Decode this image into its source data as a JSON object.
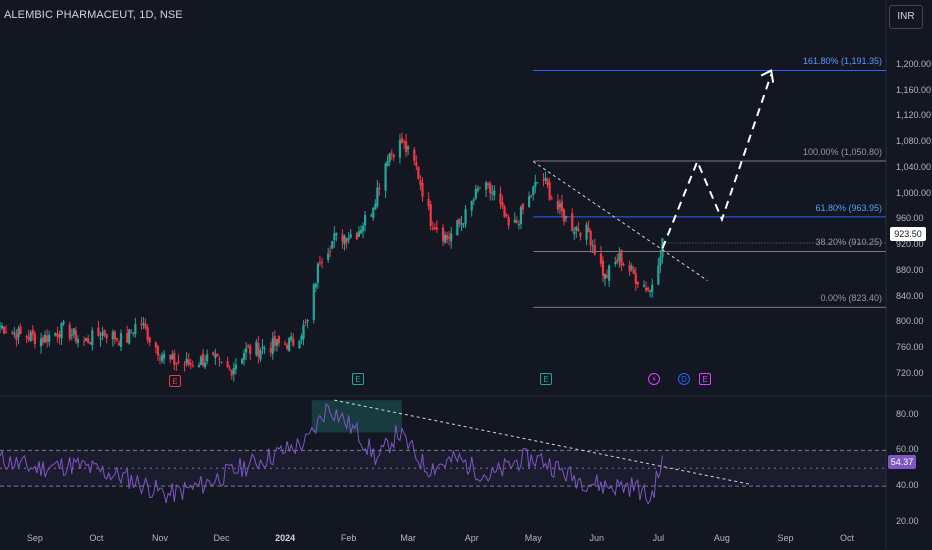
{
  "header": {
    "title": "ALEMBIC PHARMACEUT, 1D, NSE",
    "currency_button": "INR"
  },
  "price_axis": {
    "ticks": [
      "1,200.00",
      "1,160.00",
      "1,120.00",
      "1,080.00",
      "1,040.00",
      "1,000.00",
      "960.00",
      "920.00",
      "880.00",
      "840.00",
      "800.00",
      "760.00",
      "720.00"
    ]
  },
  "rsi_axis": {
    "ticks": [
      "80.00",
      "60.00",
      "40.00",
      "20.00"
    ]
  },
  "time_axis": {
    "ticks": [
      "Sep",
      "Oct",
      "Nov",
      "Dec",
      "2024",
      "Feb",
      "Mar",
      "Apr",
      "May",
      "Jun",
      "Jul",
      "Aug",
      "Sep",
      "Oct"
    ]
  },
  "last_price": "923.50",
  "rsi_value": "54.37",
  "fib_levels": [
    {
      "label": "161.80% (1,191.35)",
      "value": 1191.35
    },
    {
      "label": "100.00% (1,050.80)",
      "value": 1050.8
    },
    {
      "label": "61.80% (963.95)",
      "value": 963.95
    },
    {
      "label": "38.20% (910.25)",
      "value": 910.25
    },
    {
      "label": "0.00% (823.40)",
      "value": 823.4
    }
  ],
  "markers": [
    {
      "letter": "E",
      "type": "earnings-red"
    },
    {
      "letter": "E",
      "type": "earnings-green"
    },
    {
      "letter": "E",
      "type": "earnings-green"
    },
    {
      "letter": "⚡",
      "type": "split"
    },
    {
      "letter": "D",
      "type": "dividend"
    },
    {
      "letter": "E",
      "type": "earnings-purple"
    }
  ],
  "colors": {
    "up": "#26a69a",
    "down": "#f23645",
    "fib": "#787b86",
    "fib_ext": "#2962ff",
    "rsi": "#7e57c2",
    "bg": "#131722"
  },
  "chart_data": {
    "type": "candlestick",
    "title": "ALEMBIC PHARMACEUT, 1D, NSE",
    "x_range": [
      "2023-08-15",
      "2024-10-20"
    ],
    "y_range": [
      700,
      1220
    ],
    "close_anchors": [
      [
        "2023-08-15",
        795
      ],
      [
        "2023-08-25",
        780
      ],
      [
        "2023-09-05",
        775
      ],
      [
        "2023-09-15",
        790
      ],
      [
        "2023-09-25",
        770
      ],
      [
        "2023-10-05",
        785
      ],
      [
        "2023-10-15",
        770
      ],
      [
        "2023-10-22",
        805
      ],
      [
        "2023-10-28",
        770
      ],
      [
        "2023-11-05",
        740
      ],
      [
        "2023-11-15",
        735
      ],
      [
        "2023-11-25",
        745
      ],
      [
        "2023-12-05",
        725
      ],
      [
        "2023-12-12",
        755
      ],
      [
        "2023-12-20",
        760
      ],
      [
        "2023-12-28",
        765
      ],
      [
        "2024-01-05",
        770
      ],
      [
        "2024-01-12",
        800
      ],
      [
        "2024-01-18",
        900
      ],
      [
        "2024-01-25",
        930
      ],
      [
        "2024-02-05",
        940
      ],
      [
        "2024-02-12",
        975
      ],
      [
        "2024-02-20",
        1060
      ],
      [
        "2024-02-27",
        1080
      ],
      [
        "2024-03-05",
        1040
      ],
      [
        "2024-03-12",
        960
      ],
      [
        "2024-03-20",
        930
      ],
      [
        "2024-03-28",
        960
      ],
      [
        "2024-04-05",
        1010
      ],
      [
        "2024-04-12",
        1000
      ],
      [
        "2024-04-20",
        940
      ],
      [
        "2024-04-27",
        980
      ],
      [
        "2024-05-05",
        1030
      ],
      [
        "2024-05-12",
        980
      ],
      [
        "2024-05-20",
        950
      ],
      [
        "2024-05-28",
        940
      ],
      [
        "2024-06-05",
        870
      ],
      [
        "2024-06-12",
        900
      ],
      [
        "2024-06-20",
        870
      ],
      [
        "2024-06-27",
        850
      ],
      [
        "2024-07-03",
        925
      ]
    ],
    "projection": [
      [
        "2024-07-03",
        915
      ],
      [
        "2024-07-20",
        1050
      ],
      [
        "2024-08-01",
        960
      ],
      [
        "2024-08-25",
        1185
      ]
    ],
    "trendline": [
      [
        "2024-05-01",
        1050
      ],
      [
        "2024-07-25",
        865
      ]
    ],
    "rsi": {
      "range": [
        20,
        90
      ],
      "bands": [
        40,
        50,
        60
      ],
      "anchors": [
        [
          "2023-08-15",
          55
        ],
        [
          "2023-09-01",
          50
        ],
        [
          "2023-09-20",
          52
        ],
        [
          "2023-10-15",
          45
        ],
        [
          "2023-11-05",
          35
        ],
        [
          "2023-11-20",
          40
        ],
        [
          "2023-12-10",
          50
        ],
        [
          "2023-12-28",
          58
        ],
        [
          "2024-01-12",
          65
        ],
        [
          "2024-01-22",
          85
        ],
        [
          "2024-02-05",
          70
        ],
        [
          "2024-02-15",
          55
        ],
        [
          "2024-02-25",
          70
        ],
        [
          "2024-03-10",
          50
        ],
        [
          "2024-03-25",
          55
        ],
        [
          "2024-04-10",
          45
        ],
        [
          "2024-04-25",
          55
        ],
        [
          "2024-05-05",
          55
        ],
        [
          "2024-05-20",
          45
        ],
        [
          "2024-06-05",
          40
        ],
        [
          "2024-06-20",
          40
        ],
        [
          "2024-06-27",
          32
        ],
        [
          "2024-07-03",
          54
        ]
      ],
      "trendline": [
        [
          "2024-01-25",
          88
        ],
        [
          "2024-08-15",
          41
        ]
      ]
    }
  }
}
